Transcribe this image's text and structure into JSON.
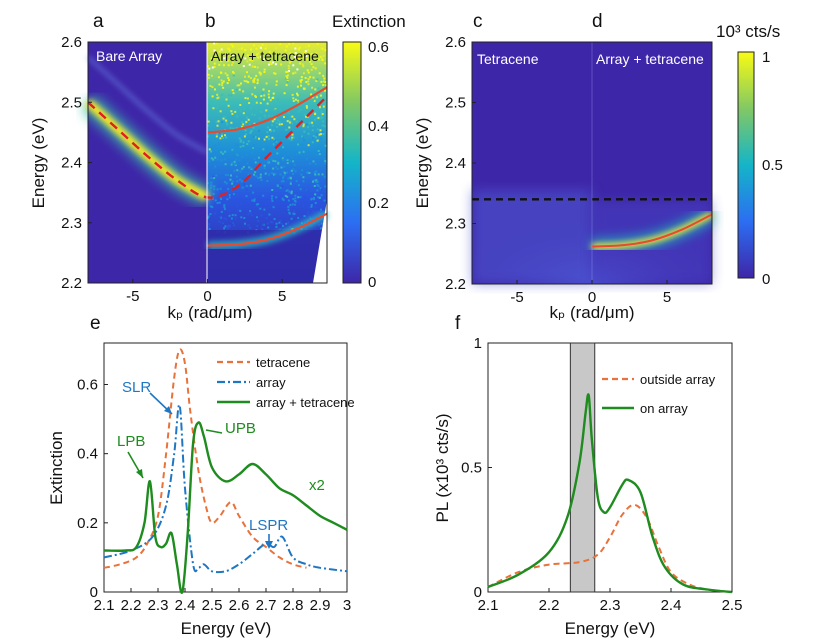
{
  "panels": {
    "a": {
      "label": "a",
      "title": "Bare Array"
    },
    "b": {
      "label": "b",
      "title": "Array + tetracene"
    },
    "c": {
      "label": "c",
      "title": "Tetracene"
    },
    "d": {
      "label": "d",
      "title": "Array + tetracene"
    },
    "e": {
      "label": "e"
    },
    "f": {
      "label": "f"
    }
  },
  "colorbars": {
    "left": {
      "title": "Extinction",
      "ticks": [
        "0.6",
        "0.4",
        "0.2",
        "0"
      ]
    },
    "right": {
      "title": "10³ cts/s",
      "ticks": [
        "1",
        "0.5",
        "0"
      ]
    }
  },
  "colors": {
    "tetracene": "#e8723a",
    "array": "#1f77c4",
    "array_tetracene": "#1e8c1e",
    "polariton_fit": "#e84a2f",
    "bare_dash": "#e02020",
    "shade": "#c8c8c8"
  },
  "chart_data": [
    {
      "id": "ab",
      "type": "heatmap",
      "title": "",
      "xlabel": "kₚ (rad/μm)",
      "ylabel": "Energy (eV)",
      "xlim": [
        -8,
        8
      ],
      "ylim": [
        2.2,
        2.6
      ],
      "xticks": [
        "-5",
        "0",
        "5"
      ],
      "yticks": [
        "2.6",
        "2.5",
        "2.4",
        "2.3",
        "2.2"
      ],
      "bare_dispersion": {
        "x": [
          -8,
          -6,
          -4,
          -2,
          0,
          2,
          4,
          6,
          8
        ],
        "y": [
          2.5,
          2.455,
          2.41,
          2.37,
          2.342,
          2.36,
          2.41,
          2.46,
          2.51
        ]
      },
      "upper_polariton": {
        "x": [
          0,
          2,
          4,
          6,
          8
        ],
        "y": [
          2.45,
          2.455,
          2.47,
          2.495,
          2.525
        ]
      },
      "lower_polariton": {
        "x": [
          0,
          2,
          4,
          6,
          8
        ],
        "y": [
          2.262,
          2.264,
          2.272,
          2.29,
          2.315
        ]
      }
    },
    {
      "id": "cd",
      "type": "heatmap",
      "title": "",
      "xlabel": "kₚ (rad/μm)",
      "ylabel": "Energy (eV)",
      "xlim": [
        -8,
        8
      ],
      "ylim": [
        2.2,
        2.6
      ],
      "xticks": [
        "-5",
        "0",
        "5"
      ],
      "yticks": [
        "2.6",
        "2.5",
        "2.4",
        "2.3",
        "2.2"
      ],
      "exciton_line": 2.34,
      "lower_polariton": {
        "x": [
          0,
          2,
          4,
          6,
          8
        ],
        "y": [
          2.262,
          2.264,
          2.272,
          2.29,
          2.315
        ]
      }
    },
    {
      "id": "e",
      "type": "line",
      "title": "",
      "xlabel": "Energy (eV)",
      "ylabel": "Extinction",
      "xlim": [
        2.1,
        3.0
      ],
      "ylim": [
        0,
        0.72
      ],
      "xticks": [
        "2.1",
        "2.2",
        "2.3",
        "2.4",
        "2.5",
        "2.6",
        "2.7",
        "2.8",
        "2.9",
        "3"
      ],
      "yticks": [
        "0",
        "0.2",
        "0.4",
        "0.6"
      ],
      "series": [
        {
          "name": "tetracene",
          "style": "dashed",
          "x": [
            2.1,
            2.16,
            2.22,
            2.26,
            2.3,
            2.33,
            2.36,
            2.38,
            2.4,
            2.42,
            2.45,
            2.48,
            2.5,
            2.53,
            2.57,
            2.6,
            2.65,
            2.7,
            2.75,
            2.8,
            2.85
          ],
          "y": [
            0.07,
            0.08,
            0.1,
            0.14,
            0.22,
            0.4,
            0.62,
            0.7,
            0.66,
            0.52,
            0.35,
            0.24,
            0.2,
            0.22,
            0.26,
            0.22,
            0.16,
            0.13,
            0.1,
            0.08,
            0.07
          ]
        },
        {
          "name": "array",
          "style": "dashdot",
          "x": [
            2.1,
            2.2,
            2.28,
            2.33,
            2.36,
            2.38,
            2.4,
            2.43,
            2.45,
            2.47,
            2.5,
            2.55,
            2.6,
            2.65,
            2.7,
            2.73,
            2.76,
            2.8,
            2.85,
            2.9,
            3.0
          ],
          "y": [
            0.1,
            0.12,
            0.16,
            0.25,
            0.4,
            0.54,
            0.3,
            0.08,
            0.07,
            0.08,
            0.06,
            0.06,
            0.08,
            0.11,
            0.14,
            0.13,
            0.16,
            0.1,
            0.08,
            0.07,
            0.06
          ]
        },
        {
          "name": "array + tetracene",
          "style": "solid",
          "x": [
            2.1,
            2.18,
            2.22,
            2.25,
            2.27,
            2.29,
            2.31,
            2.33,
            2.35,
            2.37,
            2.39,
            2.41,
            2.43,
            2.45,
            2.47,
            2.5,
            2.55,
            2.6,
            2.65,
            2.7,
            2.75,
            2.8,
            2.85,
            2.9,
            2.95,
            3.0
          ],
          "y": [
            0.12,
            0.12,
            0.13,
            0.2,
            0.32,
            0.16,
            0.13,
            0.14,
            0.17,
            0.08,
            0.0,
            0.17,
            0.43,
            0.49,
            0.45,
            0.36,
            0.32,
            0.34,
            0.37,
            0.34,
            0.3,
            0.28,
            0.25,
            0.22,
            0.2,
            0.18
          ]
        }
      ],
      "annotations": [
        "SLR",
        "LPB",
        "UPB",
        "LSPR",
        "x2"
      ]
    },
    {
      "id": "f",
      "type": "line",
      "title": "",
      "xlabel": "Energy (eV)",
      "ylabel": "PL (x10³ cts/s)",
      "xlim": [
        2.1,
        2.5
      ],
      "ylim": [
        0,
        1.0
      ],
      "xticks": [
        "2.1",
        "2.2",
        "2.3",
        "2.4",
        "2.5"
      ],
      "yticks": [
        "0",
        "0.5",
        "1"
      ],
      "shaded_band": [
        2.235,
        2.275
      ],
      "series": [
        {
          "name": "outside array",
          "style": "dashed",
          "x": [
            2.1,
            2.15,
            2.2,
            2.25,
            2.28,
            2.3,
            2.32,
            2.34,
            2.36,
            2.38,
            2.4,
            2.43,
            2.46,
            2.5
          ],
          "y": [
            0.02,
            0.08,
            0.11,
            0.12,
            0.15,
            0.22,
            0.31,
            0.35,
            0.3,
            0.18,
            0.08,
            0.03,
            0.01,
            0.0
          ]
        },
        {
          "name": "on array",
          "style": "solid",
          "x": [
            2.1,
            2.15,
            2.2,
            2.23,
            2.25,
            2.26,
            2.265,
            2.27,
            2.28,
            2.29,
            2.3,
            2.32,
            2.33,
            2.35,
            2.37,
            2.39,
            2.42,
            2.46,
            2.5
          ],
          "y": [
            0.02,
            0.07,
            0.16,
            0.3,
            0.52,
            0.72,
            0.79,
            0.62,
            0.38,
            0.32,
            0.34,
            0.43,
            0.45,
            0.4,
            0.22,
            0.1,
            0.03,
            0.01,
            0.0
          ]
        }
      ]
    }
  ]
}
